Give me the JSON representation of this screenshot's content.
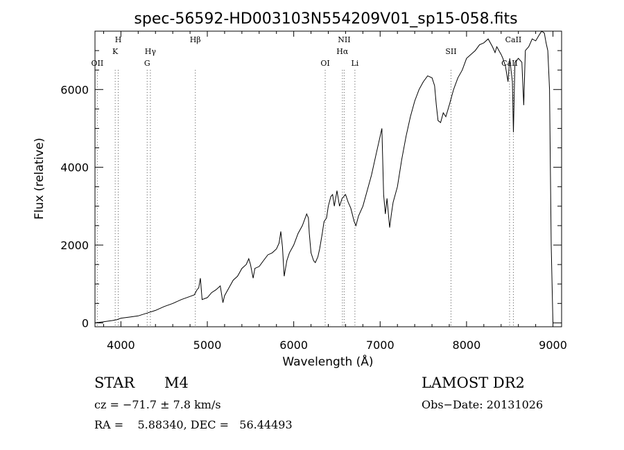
{
  "chart_data": {
    "type": "line",
    "title": "spec-56592-HD003103N554209V01_sp15-058.fits",
    "xlabel": "Wavelength (Å)",
    "ylabel": "Flux (relative)",
    "xlim": [
      3700,
      9100
    ],
    "ylim": [
      -100,
      7500
    ],
    "xticks": [
      4000,
      5000,
      6000,
      7000,
      8000,
      9000
    ],
    "yticks": [
      0,
      2000,
      4000,
      6000
    ],
    "grid": false,
    "series": [
      {
        "points": [
          [
            3700,
            0
          ],
          [
            3800,
            30
          ],
          [
            3900,
            60
          ],
          [
            3950,
            80
          ],
          [
            4000,
            120
          ],
          [
            4100,
            150
          ],
          [
            4200,
            180
          ],
          [
            4300,
            250
          ],
          [
            4400,
            320
          ],
          [
            4500,
            420
          ],
          [
            4600,
            500
          ],
          [
            4700,
            600
          ],
          [
            4800,
            680
          ],
          [
            4850,
            720
          ],
          [
            4880,
            850
          ],
          [
            4900,
            900
          ],
          [
            4920,
            1150
          ],
          [
            4940,
            600
          ],
          [
            5000,
            650
          ],
          [
            5050,
            780
          ],
          [
            5100,
            850
          ],
          [
            5150,
            950
          ],
          [
            5180,
            520
          ],
          [
            5200,
            700
          ],
          [
            5250,
            900
          ],
          [
            5300,
            1100
          ],
          [
            5350,
            1200
          ],
          [
            5400,
            1400
          ],
          [
            5450,
            1500
          ],
          [
            5480,
            1650
          ],
          [
            5500,
            1500
          ],
          [
            5530,
            1150
          ],
          [
            5550,
            1400
          ],
          [
            5600,
            1450
          ],
          [
            5650,
            1600
          ],
          [
            5700,
            1750
          ],
          [
            5750,
            1800
          ],
          [
            5800,
            1900
          ],
          [
            5830,
            2050
          ],
          [
            5850,
            2350
          ],
          [
            5870,
            1950
          ],
          [
            5890,
            1200
          ],
          [
            5920,
            1600
          ],
          [
            5950,
            1800
          ],
          [
            6000,
            2000
          ],
          [
            6050,
            2300
          ],
          [
            6100,
            2500
          ],
          [
            6150,
            2800
          ],
          [
            6170,
            2700
          ],
          [
            6180,
            2300
          ],
          [
            6200,
            1800
          ],
          [
            6230,
            1600
          ],
          [
            6250,
            1550
          ],
          [
            6280,
            1700
          ],
          [
            6300,
            1900
          ],
          [
            6330,
            2300
          ],
          [
            6350,
            2600
          ],
          [
            6380,
            2700
          ],
          [
            6400,
            3000
          ],
          [
            6430,
            3250
          ],
          [
            6450,
            3300
          ],
          [
            6470,
            3000
          ],
          [
            6500,
            3400
          ],
          [
            6530,
            3000
          ],
          [
            6560,
            3200
          ],
          [
            6600,
            3300
          ],
          [
            6630,
            3100
          ],
          [
            6660,
            2950
          ],
          [
            6700,
            2600
          ],
          [
            6720,
            2500
          ],
          [
            6750,
            2750
          ],
          [
            6800,
            3000
          ],
          [
            6850,
            3400
          ],
          [
            6900,
            3800
          ],
          [
            6950,
            4300
          ],
          [
            7000,
            4800
          ],
          [
            7020,
            5000
          ],
          [
            7040,
            3300
          ],
          [
            7060,
            2800
          ],
          [
            7080,
            3200
          ],
          [
            7100,
            2700
          ],
          [
            7110,
            2450
          ],
          [
            7130,
            2800
          ],
          [
            7150,
            3100
          ],
          [
            7200,
            3500
          ],
          [
            7250,
            4200
          ],
          [
            7300,
            4800
          ],
          [
            7350,
            5300
          ],
          [
            7400,
            5700
          ],
          [
            7450,
            6000
          ],
          [
            7500,
            6200
          ],
          [
            7550,
            6350
          ],
          [
            7600,
            6300
          ],
          [
            7630,
            6100
          ],
          [
            7650,
            5600
          ],
          [
            7670,
            5200
          ],
          [
            7700,
            5150
          ],
          [
            7730,
            5400
          ],
          [
            7760,
            5300
          ],
          [
            7800,
            5600
          ],
          [
            7850,
            6000
          ],
          [
            7900,
            6300
          ],
          [
            7950,
            6500
          ],
          [
            8000,
            6800
          ],
          [
            8050,
            6900
          ],
          [
            8100,
            7000
          ],
          [
            8150,
            7150
          ],
          [
            8200,
            7200
          ],
          [
            8250,
            7300
          ],
          [
            8300,
            7100
          ],
          [
            8330,
            6950
          ],
          [
            8350,
            7100
          ],
          [
            8400,
            6900
          ],
          [
            8420,
            6800
          ],
          [
            8450,
            6600
          ],
          [
            8480,
            6200
          ],
          [
            8500,
            6800
          ],
          [
            8530,
            6200
          ],
          [
            8542,
            4900
          ],
          [
            8560,
            6700
          ],
          [
            8600,
            6800
          ],
          [
            8640,
            6700
          ],
          [
            8662,
            5600
          ],
          [
            8680,
            7000
          ],
          [
            8720,
            7100
          ],
          [
            8760,
            7300
          ],
          [
            8800,
            7250
          ],
          [
            8840,
            7400
          ],
          [
            8870,
            7500
          ],
          [
            8900,
            7450
          ],
          [
            8920,
            7200
          ],
          [
            8940,
            7000
          ],
          [
            8960,
            6000
          ],
          [
            8980,
            2000
          ],
          [
            9000,
            0
          ]
        ]
      }
    ],
    "lines": [
      {
        "wavelength": 3727,
        "label": "OII",
        "row": 3
      },
      {
        "wavelength": 3934,
        "label": "K",
        "row": 2
      },
      {
        "wavelength": 3969,
        "label": "H",
        "row": 1
      },
      {
        "wavelength": 4304,
        "label": "G",
        "row": 3
      },
      {
        "wavelength": 4341,
        "label": "Hγ",
        "row": 2
      },
      {
        "wavelength": 4861,
        "label": "Hβ",
        "row": 1
      },
      {
        "wavelength": 6364,
        "label": "OI",
        "row": 3
      },
      {
        "wavelength": 6563,
        "label": "Hα",
        "row": 2
      },
      {
        "wavelength": 6584,
        "label": "NII",
        "row": 1
      },
      {
        "wavelength": 6708,
        "label": "Li",
        "row": 3
      },
      {
        "wavelength": 7820,
        "label": "SII",
        "row": 2
      },
      {
        "wavelength": 8498,
        "label": "CaII",
        "row": 3
      },
      {
        "wavelength": 8542,
        "label": "CaII",
        "row": 1
      }
    ]
  },
  "info": {
    "object_class": "STAR",
    "subclass": "M4",
    "survey": "LAMOST DR2",
    "cz": "cz = −71.7 ± 7.8 km/s",
    "obs_date": "Obs−Date: 20131026",
    "radec": "RA =    5.88340, DEC =   56.44493"
  }
}
